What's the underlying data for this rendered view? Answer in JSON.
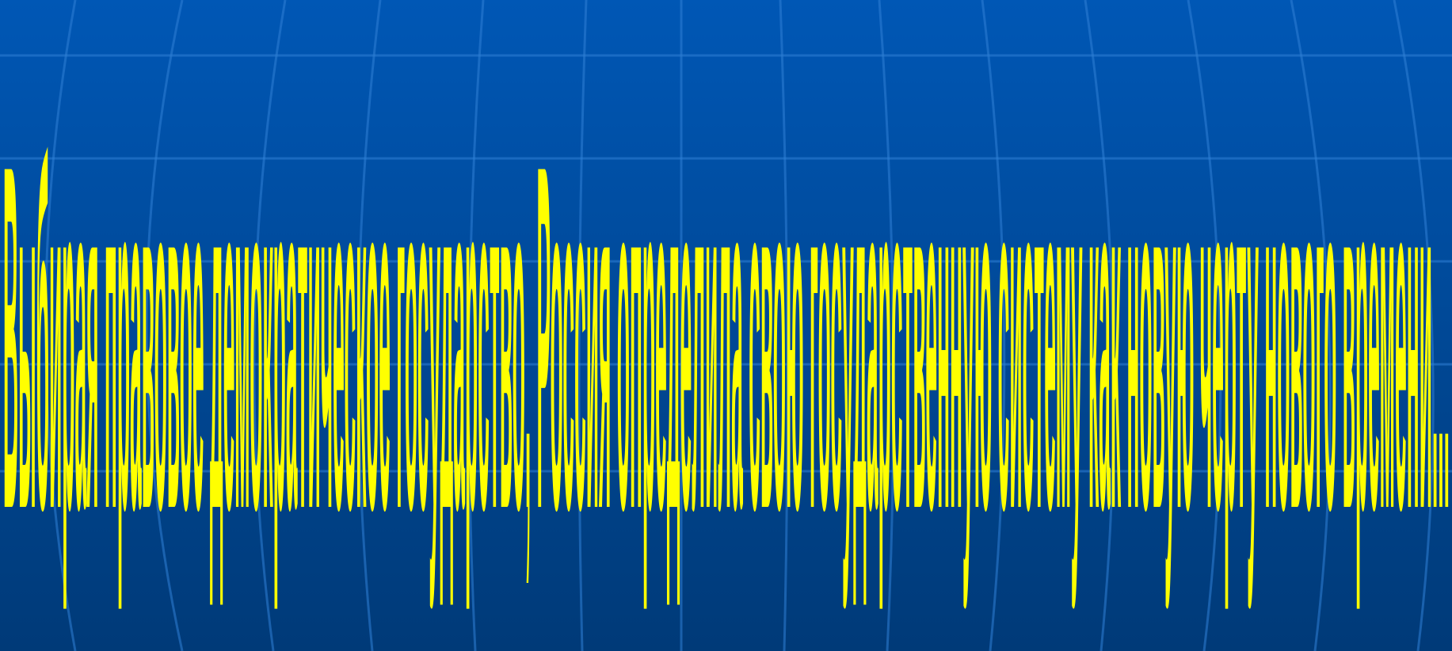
{
  "slide": {
    "text": "Выбирая правовое демократическое государство, Россия определила свою государственную систему как новую черту нового времени..."
  },
  "colors": {
    "background": "#0057b5",
    "text": "#ffff00",
    "grid": "#2f7fd6"
  }
}
